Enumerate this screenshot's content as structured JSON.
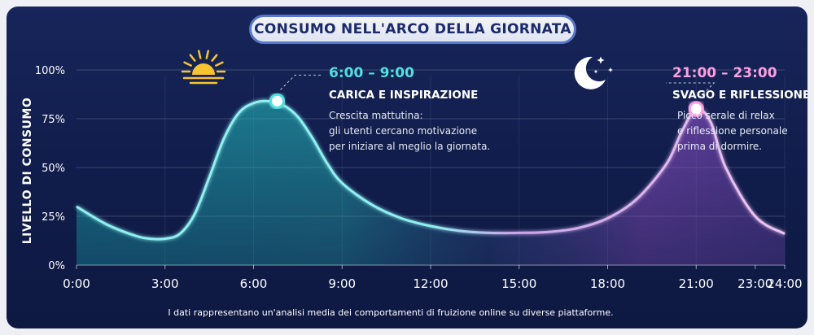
{
  "chart_data": {
    "type": "area",
    "title": "CONSUMO NELL'ARCO DELLA GIORNATA",
    "ylabel": "LIVELLO DI CONSUMO",
    "xlabel": "",
    "ylim": [
      0,
      100
    ],
    "xlim": [
      0,
      24
    ],
    "y_ticks": [
      0,
      25,
      50,
      75,
      100
    ],
    "y_tick_labels": [
      "0%",
      "25%",
      "50%",
      "75%",
      "100%"
    ],
    "x_ticks": [
      0,
      3,
      6,
      9,
      12,
      15,
      18,
      21,
      24
    ],
    "x_tick_labels": [
      "0:00",
      "3:00",
      "6:00",
      "9:00",
      "12:00",
      "15:00",
      "18:00",
      "21:00",
      "23:00",
      "24:00"
    ],
    "x_tick_positions": [
      0,
      3,
      6,
      9,
      12,
      15,
      18,
      21,
      23,
      24
    ],
    "series": [
      {
        "color": "#4fe0e0",
        "x": [
          0,
          1,
          2,
          2.5,
          3,
          3.5,
          4,
          4.5,
          5,
          5.5,
          6,
          6.5,
          7,
          7.5,
          8,
          8.5,
          9,
          10,
          11,
          12,
          13,
          14,
          15,
          16,
          17,
          18,
          19,
          20,
          20.5,
          21,
          21.5,
          22,
          23,
          24
        ],
        "y": [
          30,
          21,
          15,
          13.5,
          13.5,
          16,
          26,
          45,
          65,
          78,
          83,
          84,
          82,
          76,
          65,
          52,
          42,
          31,
          24,
          20,
          17.5,
          16.5,
          16.5,
          17,
          19,
          24,
          34,
          52,
          68,
          80,
          73,
          50,
          25,
          16
        ]
      }
    ],
    "highlights": [
      {
        "x": 6.8,
        "y": 84,
        "color": "#4fe0e0",
        "time": "6:00 – 9:00",
        "heading": "CARICA E INSPIRAZIONE",
        "body": [
          "Crescita mattutina:",
          "gli utenti cercano motivazione",
          "per iniziare al meglio la giornata."
        ],
        "icon": "sun-icon"
      },
      {
        "x": 21,
        "y": 80,
        "color": "#ff9fe0",
        "time": "21:00 – 23:00",
        "heading": "SVAGO E RIFLESSIONE",
        "body": [
          "Picco serale di relax",
          "e riflessione personale",
          "prima di dormire."
        ],
        "icon": "moon-stars-icon"
      }
    ],
    "gradient_colors": [
      "#2fc6c9",
      "#9b5fd0"
    ],
    "grid": true
  },
  "footnote": "I dati rappresentano un'analisi media dei comportamenti di fruizione online su diverse piattaforme."
}
